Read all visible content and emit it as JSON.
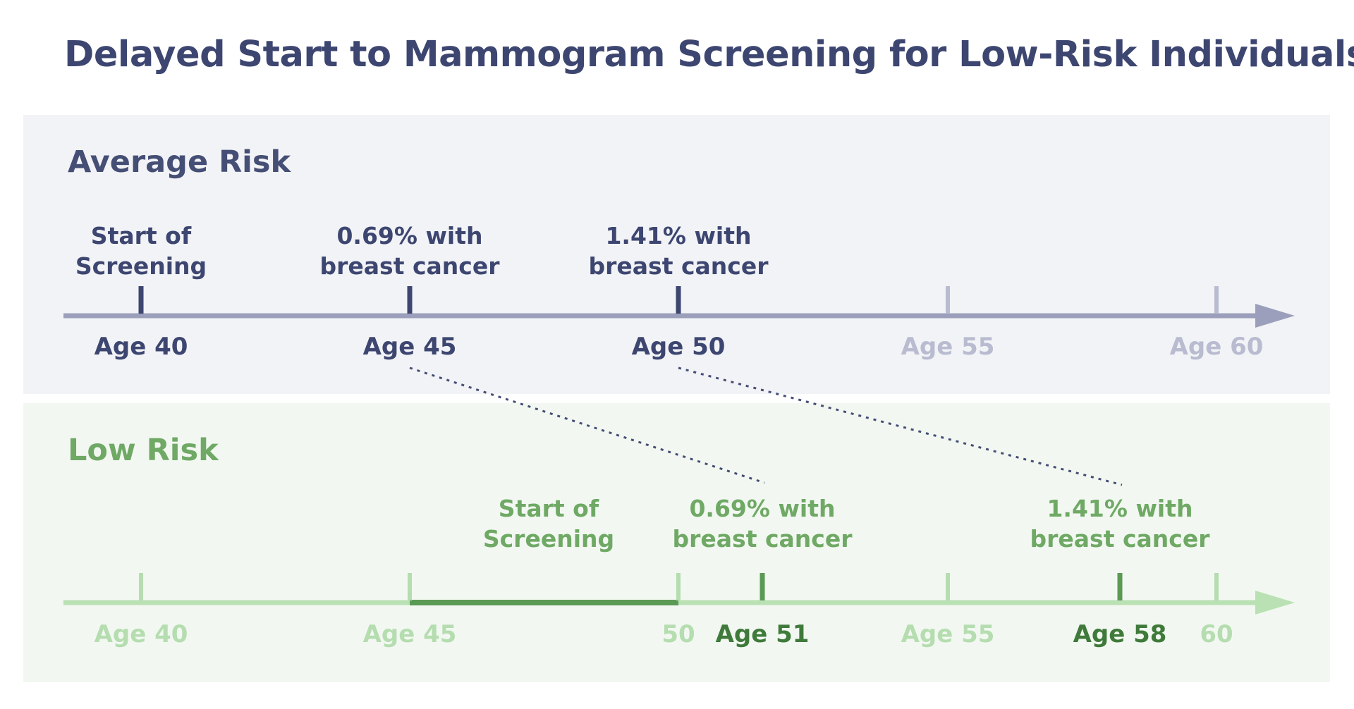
{
  "title": "Delayed Start to Mammogram Screening for Low-Risk Individuals",
  "colors": {
    "avg_dark": "#3d4670",
    "avg_axis": "#9b9fbb",
    "avg_light": "#b9bcd0",
    "low_dark": "#5b9a55",
    "low_mid": "#6fa965",
    "low_axis": "#b9e1b3",
    "low_light": "#b5ddb0",
    "avg_bg": "#f2f3f6",
    "low_bg": "#f2f8f1"
  },
  "average": {
    "title": "Average Risk",
    "age_labels": [
      "Age 40",
      "Age 45",
      "Age 50",
      "Age 55",
      "Age 60"
    ],
    "annotations": [
      {
        "line1": "Start of",
        "line2": "Screening"
      },
      {
        "line1": "0.69% with",
        "line2": "breast cancer"
      },
      {
        "line1": "1.41% with",
        "line2": "breast cancer"
      }
    ]
  },
  "low": {
    "title": "Low Risk",
    "age_labels": [
      "Age 40",
      "Age 45",
      "50",
      "Age 51",
      "Age 55",
      "Age 58",
      "60"
    ],
    "annotations": [
      {
        "line1": "Start of",
        "line2": "Screening"
      },
      {
        "line1": "0.69% with",
        "line2": "breast cancer"
      },
      {
        "line1": "1.41% with",
        "line2": "breast cancer"
      }
    ]
  }
}
